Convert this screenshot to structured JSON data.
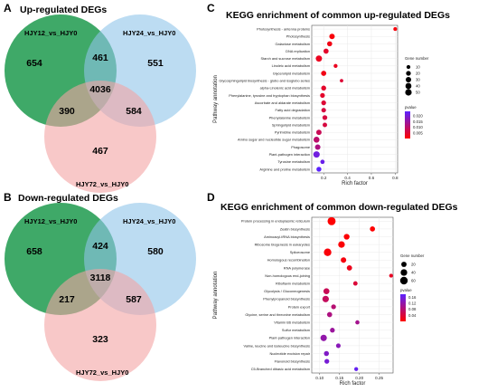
{
  "panels": {
    "A": {
      "letter": "A",
      "title": "Up-regulated DEGs"
    },
    "B": {
      "letter": "B",
      "title": "Down-regulated DEGs"
    },
    "C": {
      "letter": "C"
    },
    "D": {
      "letter": "D"
    }
  },
  "colors": {
    "set1": "#1d9a4e",
    "set2": "#8fc4ea",
    "set3": "#f4a3a3",
    "accent_low": "#ff0000",
    "accent_high": "#5b22ff"
  },
  "chart_data": [
    {
      "type": "venn",
      "title": "Up-regulated DEGs",
      "sets": [
        "HJY12_vs_HJY0",
        "HJY24_vs_HJY0",
        "HJY72_vs_HJY0"
      ],
      "regions": {
        "a_only": 654,
        "b_only": 551,
        "c_only": 467,
        "ab": 461,
        "ac": 390,
        "bc": 584,
        "abc": 4036
      }
    },
    {
      "type": "venn",
      "title": "Down-regulated DEGs",
      "sets": [
        "HJY12_vs_HJY0",
        "HJY24_vs_HJY0",
        "HJY72_vs_HJY0"
      ],
      "regions": {
        "a_only": 658,
        "b_only": 580,
        "c_only": 323,
        "ab": 424,
        "ac": 217,
        "bc": 587,
        "abc": 3118
      }
    },
    {
      "type": "scatter",
      "title": "KEGG enrichment of common up-regulated DEGs",
      "xlabel": "Rich factor",
      "ylabel": "Pathway annotation",
      "xlim": [
        0.1,
        0.82
      ],
      "xticks": [
        0.2,
        0.4,
        0.6,
        0.8
      ],
      "size_legend": {
        "title": "Gene number",
        "values": [
          10,
          20,
          30,
          40,
          50
        ]
      },
      "color_legend": {
        "title": "pvalue",
        "ticks": [
          0.02,
          0.015,
          0.01,
          0.005
        ],
        "range": [
          0.0,
          0.024
        ]
      },
      "points": [
        {
          "term": "Photosynthesis - antenna proteins",
          "x": 0.8,
          "n": 8,
          "p": 0.001
        },
        {
          "term": "Photosynthesis",
          "x": 0.27,
          "n": 30,
          "p": 0.001
        },
        {
          "term": "Galactose metabolism",
          "x": 0.25,
          "n": 24,
          "p": 0.002
        },
        {
          "term": "DNA replication",
          "x": 0.22,
          "n": 25,
          "p": 0.004
        },
        {
          "term": "Starch and sucrose metabolism",
          "x": 0.16,
          "n": 45,
          "p": 0.003
        },
        {
          "term": "Linoleic acid metabolism",
          "x": 0.3,
          "n": 10,
          "p": 0.003
        },
        {
          "term": "Glycerolipid metabolism",
          "x": 0.2,
          "n": 26,
          "p": 0.002
        },
        {
          "term": "Glycosphingolipid biosynthesis - globo and isoglobo series",
          "x": 0.35,
          "n": 6,
          "p": 0.005
        },
        {
          "term": "alpha-Linolenic acid metabolism",
          "x": 0.2,
          "n": 22,
          "p": 0.004
        },
        {
          "term": "Phenylalanine, tyrosine and tryptophan biosynthesis",
          "x": 0.19,
          "n": 20,
          "p": 0.004
        },
        {
          "term": "Ascorbate and aldarate metabolism",
          "x": 0.2,
          "n": 20,
          "p": 0.005
        },
        {
          "term": "Fatty acid degradation",
          "x": 0.2,
          "n": 18,
          "p": 0.006
        },
        {
          "term": "Phenylalanine metabolism",
          "x": 0.21,
          "n": 21,
          "p": 0.006
        },
        {
          "term": "Sphingolipid metabolism",
          "x": 0.21,
          "n": 16,
          "p": 0.006
        },
        {
          "term": "Pyrimidine metabolism",
          "x": 0.16,
          "n": 28,
          "p": 0.008
        },
        {
          "term": "Amino sugar and nucleotide sugar metabolism",
          "x": 0.14,
          "n": 38,
          "p": 0.01
        },
        {
          "term": "Phagosome",
          "x": 0.15,
          "n": 30,
          "p": 0.012
        },
        {
          "term": "Plant-pathogen interaction",
          "x": 0.14,
          "n": 48,
          "p": 0.021
        },
        {
          "term": "Tyrosine metabolism",
          "x": 0.19,
          "n": 14,
          "p": 0.022
        },
        {
          "term": "Arginine and proline metabolism",
          "x": 0.16,
          "n": 22,
          "p": 0.024
        }
      ]
    },
    {
      "type": "scatter",
      "title": "KEGG enrichment of common down-regulated DEGs",
      "xlabel": "Rich factor",
      "ylabel": "Pathway annotation",
      "xlim": [
        0.08,
        0.285
      ],
      "xticks": [
        0.1,
        0.15,
        0.2,
        0.25
      ],
      "size_legend": {
        "title": "Gene number",
        "values": [
          20,
          40,
          60
        ]
      },
      "color_legend": {
        "title": "pvalue",
        "ticks": [
          0.16,
          0.12,
          0.08,
          0.04
        ],
        "range": [
          0.0,
          0.18
        ]
      },
      "points": [
        {
          "term": "Protein processing in endoplasmic reticulum",
          "x": 0.13,
          "n": 70,
          "p": 0.001
        },
        {
          "term": "Zeatin biosynthesis",
          "x": 0.233,
          "n": 18,
          "p": 0.001
        },
        {
          "term": "Aminoacyl-tRNA biosynthesis",
          "x": 0.168,
          "n": 26,
          "p": 0.003
        },
        {
          "term": "Ribosome biogenesis in eukaryotes",
          "x": 0.155,
          "n": 40,
          "p": 0.004
        },
        {
          "term": "Spliceosome",
          "x": 0.12,
          "n": 58,
          "p": 0.006
        },
        {
          "term": "Homologous recombination",
          "x": 0.16,
          "n": 22,
          "p": 0.01
        },
        {
          "term": "RNA polymerase",
          "x": 0.175,
          "n": 20,
          "p": 0.02
        },
        {
          "term": "Non-homologous end-joining",
          "x": 0.28,
          "n": 6,
          "p": 0.025
        },
        {
          "term": "Riboflavin metabolism",
          "x": 0.19,
          "n": 10,
          "p": 0.04
        },
        {
          "term": "Glycolysis / Gluconeogenesis",
          "x": 0.117,
          "n": 30,
          "p": 0.06
        },
        {
          "term": "Phenylpropanoid biosynthesis",
          "x": 0.115,
          "n": 38,
          "p": 0.065
        },
        {
          "term": "Protein export",
          "x": 0.135,
          "n": 14,
          "p": 0.08
        },
        {
          "term": "Glycine, serine and threonine metabolism",
          "x": 0.125,
          "n": 18,
          "p": 0.09
        },
        {
          "term": "Vitamin B6 metabolism",
          "x": 0.195,
          "n": 8,
          "p": 0.1
        },
        {
          "term": "Sulfur metabolism",
          "x": 0.132,
          "n": 14,
          "p": 0.11
        },
        {
          "term": "Plant-pathogen interaction",
          "x": 0.11,
          "n": 36,
          "p": 0.12
        },
        {
          "term": "Valine, leucine and isoleucine biosynthesis",
          "x": 0.147,
          "n": 12,
          "p": 0.13
        },
        {
          "term": "Nucleotide excision repair",
          "x": 0.117,
          "n": 16,
          "p": 0.14
        },
        {
          "term": "Flavonoid biosynthesis",
          "x": 0.118,
          "n": 14,
          "p": 0.15
        },
        {
          "term": "C5-Branched dibasic acid metabolism",
          "x": 0.192,
          "n": 6,
          "p": 0.17
        }
      ]
    }
  ]
}
